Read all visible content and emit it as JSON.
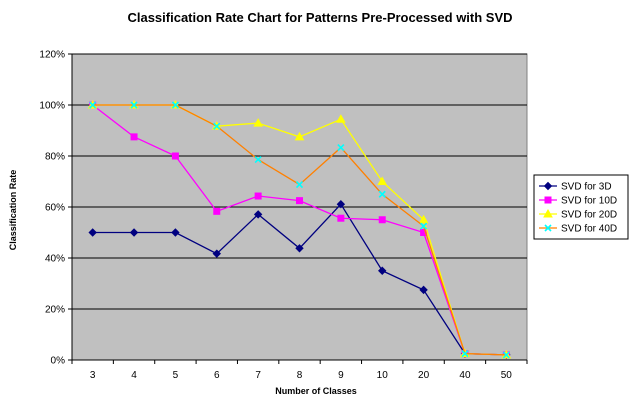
{
  "chart_data": {
    "type": "line",
    "title": "Classification Rate Chart for Patterns Pre-Processed with SVD",
    "xlabel": "Number of Classes",
    "ylabel": "Classification Rate",
    "categories": [
      "3",
      "4",
      "5",
      "6",
      "7",
      "8",
      "9",
      "10",
      "20",
      "40",
      "50"
    ],
    "ylim": [
      0,
      120
    ],
    "yticks": [
      0,
      20,
      40,
      60,
      80,
      100,
      120
    ],
    "ytick_labels": [
      "0%",
      "20%",
      "40%",
      "60%",
      "80%",
      "100%",
      "120%"
    ],
    "grid": true,
    "legend_position": "right",
    "plot_background": "#c0c0c0",
    "series": [
      {
        "name": "SVD for 3D",
        "color": "#000080",
        "marker": "diamond",
        "values": [
          50,
          50,
          50,
          41.7,
          57.1,
          43.8,
          61.1,
          35,
          27.5,
          2.5,
          2
        ]
      },
      {
        "name": "SVD for 10D",
        "color": "#ff00ff",
        "marker": "square",
        "values": [
          100,
          87.5,
          80,
          58.3,
          64.3,
          62.5,
          55.6,
          55,
          50,
          2.5,
          2
        ]
      },
      {
        "name": "SVD for 20D",
        "color": "#ffff00",
        "marker": "triangle",
        "values": [
          100,
          100,
          100,
          91.7,
          92.9,
          87.5,
          94.4,
          70,
          55,
          2.5,
          2
        ]
      },
      {
        "name": "SVD for 40D",
        "color": "#00ffff",
        "line_color": "#ff8000",
        "marker": "x",
        "values": [
          100,
          100,
          100,
          91.7,
          78.6,
          68.8,
          83.3,
          65,
          52.5,
          2.5,
          2
        ]
      }
    ]
  }
}
